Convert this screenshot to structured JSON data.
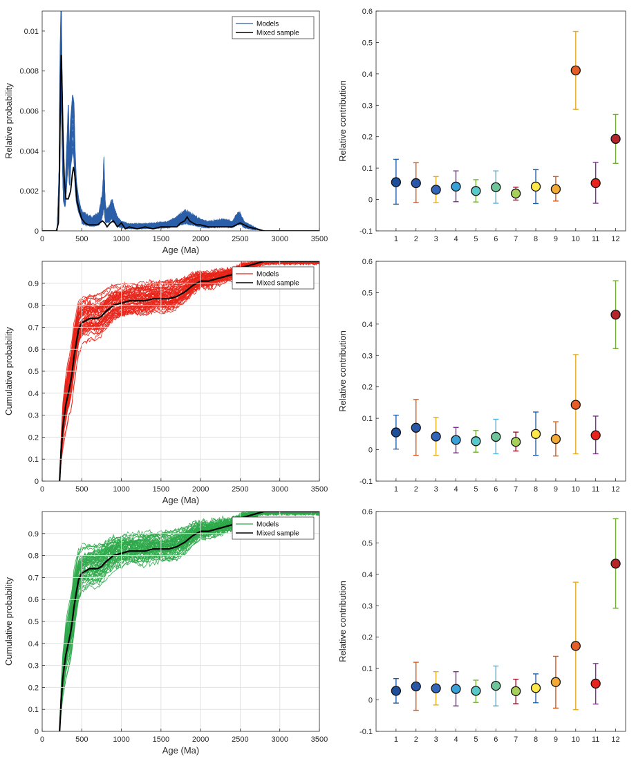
{
  "chart_data": [
    {
      "id": "pdp",
      "type": "line",
      "xlabel": "Age (Ma)",
      "ylabel": "Relative probability",
      "xlim": [
        0,
        3500
      ],
      "ylim": [
        0,
        0.011
      ],
      "xticks": [
        0,
        500,
        1000,
        1500,
        2000,
        2500,
        3000,
        3500
      ],
      "yticks": [
        0,
        0.002,
        0.004,
        0.006,
        0.008,
        0.01
      ],
      "grid": false,
      "legend": [
        "Models",
        "Mixed sample"
      ],
      "legend_position": "top-right",
      "model_color": "#2b5fa8",
      "series": [
        {
          "name": "Mixed sample",
          "color": "#000000",
          "x": [
            0,
            180,
            205,
            220,
            230,
            240,
            250,
            262,
            280,
            300,
            330,
            360,
            380,
            395,
            405,
            420,
            440,
            470,
            500,
            540,
            580,
            640,
            700,
            760,
            790,
            820,
            860,
            900,
            950,
            1000,
            1050,
            1100,
            1200,
            1300,
            1400,
            1500,
            1600,
            1700,
            1750,
            1800,
            1830,
            1860,
            1900,
            1950,
            2000,
            2100,
            2200,
            2300,
            2400,
            2450,
            2500,
            2550,
            2600,
            2700,
            2800,
            3000,
            3500
          ],
          "y": [
            0,
            0,
            0.0004,
            0.003,
            0.0072,
            0.0088,
            0.0075,
            0.005,
            0.0025,
            0.0016,
            0.0016,
            0.002,
            0.0028,
            0.0032,
            0.003,
            0.0025,
            0.0015,
            0.001,
            0.0006,
            0.0004,
            0.0003,
            0.0003,
            0.0003,
            0.0005,
            0.0004,
            0.0002,
            0.0004,
            0.0005,
            0.0002,
            0.0004,
            0.0001,
            0.0002,
            0.0001,
            0.0002,
            0.0001,
            0.0002,
            0.0002,
            0.0002,
            0.0004,
            0.0005,
            0.0007,
            0.0005,
            0.0004,
            0.0003,
            0.0003,
            0.0002,
            0.0002,
            0.0002,
            0.0002,
            0.0003,
            0.0004,
            0.0003,
            0.0002,
            0.0001,
            0,
            0,
            0
          ]
        }
      ],
      "model_envelope": {
        "x": [
          0,
          190,
          215,
          228,
          240,
          255,
          270,
          290,
          315,
          330,
          345,
          360,
          385,
          400,
          415,
          430,
          460,
          500,
          560,
          640,
          720,
          760,
          780,
          795,
          810,
          850,
          880,
          900,
          950,
          1000,
          1100,
          1300,
          1600,
          1700,
          1800,
          1850,
          1900,
          2000,
          2100,
          2300,
          2400,
          2450,
          2480,
          2510,
          2550,
          2650,
          2800,
          3500
        ],
        "y": [
          0,
          0,
          0.003,
          0.009,
          0.0115,
          0.006,
          0.0025,
          0.002,
          0.0045,
          0.0063,
          0.0035,
          0.0055,
          0.0068,
          0.0064,
          0.004,
          0.0025,
          0.0016,
          0.0009,
          0.0007,
          0.0006,
          0.0008,
          0.0016,
          0.0031,
          0.0012,
          0.0009,
          0.0011,
          0.0014,
          0.0011,
          0.0006,
          0.0004,
          0.0003,
          0.0003,
          0.0004,
          0.0006,
          0.0009,
          0.0008,
          0.0007,
          0.0005,
          0.0004,
          0.0005,
          0.0004,
          0.0007,
          0.0008,
          0.0007,
          0.0004,
          0.0002,
          0,
          0
        ]
      }
    },
    {
      "id": "contrib1",
      "type": "scatter",
      "ylabel": "Relative contribution",
      "xlim": [
        0,
        12.5
      ],
      "ylim": [
        -0.1,
        0.6
      ],
      "xticks": [
        1,
        2,
        3,
        4,
        5,
        6,
        7,
        8,
        9,
        10,
        11,
        12
      ],
      "yticks": [
        -0.1,
        0,
        0.1,
        0.2,
        0.3,
        0.4,
        0.5,
        0.6
      ],
      "grid": false,
      "x": [
        1,
        2,
        3,
        4,
        5,
        6,
        7,
        8,
        9,
        10,
        11,
        12
      ],
      "values": [
        0.055,
        0.052,
        0.031,
        0.041,
        0.027,
        0.039,
        0.019,
        0.041,
        0.033,
        0.411,
        0.052,
        0.193
      ],
      "err_low": [
        -0.015,
        -0.01,
        -0.01,
        -0.007,
        -0.008,
        -0.012,
        -0.002,
        -0.013,
        -0.005,
        0.287,
        -0.012,
        0.115
      ],
      "err_high": [
        0.128,
        0.117,
        0.073,
        0.091,
        0.063,
        0.091,
        0.039,
        0.095,
        0.073,
        0.535,
        0.118,
        0.271
      ],
      "marker_colors": [
        "#1f4e9a",
        "#2a57a6",
        "#3366b8",
        "#3aa0d8",
        "#58c9c9",
        "#6fc49a",
        "#a6d05a",
        "#ffe84a",
        "#f3a935",
        "#e45e25",
        "#e8241e",
        "#b5252a"
      ],
      "errorbar_colors": [
        "#1f5fa8",
        "#d9581f",
        "#e6ac21",
        "#7d318f",
        "#72ac36",
        "#4cb1e1",
        "#a2142f",
        "#1f5fa8",
        "#d9581f",
        "#e6ac21",
        "#7d318f",
        "#72ac36"
      ]
    },
    {
      "id": "cdf_red",
      "type": "line",
      "xlabel": "Age (Ma)",
      "ylabel": "Cumulative probability",
      "xlim": [
        0,
        3500
      ],
      "ylim": [
        0,
        1
      ],
      "xticks": [
        0,
        500,
        1000,
        1500,
        2000,
        2500,
        3000,
        3500
      ],
      "yticks": [
        0,
        0.1,
        0.2,
        0.3,
        0.4,
        0.5,
        0.6,
        0.7,
        0.8,
        0.9
      ],
      "grid": true,
      "legend": [
        "Models",
        "Mixed sample"
      ],
      "legend_position": "top-right",
      "model_color": "#e8251a",
      "series": [
        {
          "name": "Mixed sample",
          "color": "#000000",
          "x": [
            220,
            240,
            260,
            280,
            300,
            330,
            360,
            380,
            400,
            430,
            460,
            500,
            600,
            700,
            750,
            800,
            900,
            1000,
            1100,
            1200,
            1300,
            1400,
            1500,
            1600,
            1700,
            1800,
            1900,
            2000,
            2100,
            2200,
            2300,
            2400,
            2500,
            2600,
            2700,
            2800,
            3500
          ],
          "y": [
            0,
            0.14,
            0.24,
            0.3,
            0.35,
            0.4,
            0.45,
            0.5,
            0.56,
            0.63,
            0.69,
            0.72,
            0.74,
            0.74,
            0.75,
            0.77,
            0.8,
            0.81,
            0.82,
            0.82,
            0.82,
            0.83,
            0.83,
            0.83,
            0.84,
            0.86,
            0.89,
            0.91,
            0.91,
            0.92,
            0.93,
            0.94,
            0.97,
            0.98,
            0.99,
            1.0,
            1.0
          ]
        }
      ]
    },
    {
      "id": "contrib2",
      "type": "scatter",
      "ylabel": "Relative contribution",
      "xlim": [
        0,
        12.5
      ],
      "ylim": [
        -0.1,
        0.6
      ],
      "xticks": [
        1,
        2,
        3,
        4,
        5,
        6,
        7,
        8,
        9,
        10,
        11,
        12
      ],
      "yticks": [
        -0.1,
        0,
        0.1,
        0.2,
        0.3,
        0.4,
        0.5,
        0.6
      ],
      "grid": false,
      "x": [
        1,
        2,
        3,
        4,
        5,
        6,
        7,
        8,
        9,
        10,
        11,
        12
      ],
      "values": [
        0.055,
        0.07,
        0.042,
        0.031,
        0.027,
        0.041,
        0.025,
        0.05,
        0.034,
        0.143,
        0.046,
        0.43
      ],
      "err_low": [
        0.002,
        -0.018,
        -0.018,
        -0.01,
        -0.008,
        -0.013,
        -0.004,
        -0.018,
        -0.02,
        -0.013,
        -0.013,
        0.322
      ],
      "err_high": [
        0.11,
        0.16,
        0.103,
        0.071,
        0.061,
        0.097,
        0.056,
        0.12,
        0.089,
        0.303,
        0.107,
        0.538
      ],
      "marker_colors": [
        "#1f4e9a",
        "#2a57a6",
        "#3366b8",
        "#3aa0d8",
        "#58c9c9",
        "#6fc49a",
        "#a6d05a",
        "#ffe84a",
        "#f3a935",
        "#e45e25",
        "#e8241e",
        "#b5252a"
      ],
      "errorbar_colors": [
        "#1f5fa8",
        "#d9581f",
        "#e6ac21",
        "#7d318f",
        "#72ac36",
        "#4cb1e1",
        "#a2142f",
        "#1f5fa8",
        "#d9581f",
        "#e6ac21",
        "#7d318f",
        "#72ac36"
      ]
    },
    {
      "id": "cdf_green",
      "type": "line",
      "xlabel": "Age (Ma)",
      "ylabel": "Cumulative probability",
      "xlim": [
        0,
        3500
      ],
      "ylim": [
        0,
        1
      ],
      "xticks": [
        0,
        500,
        1000,
        1500,
        2000,
        2500,
        3000,
        3500
      ],
      "yticks": [
        0,
        0.1,
        0.2,
        0.3,
        0.4,
        0.5,
        0.6,
        0.7,
        0.8,
        0.9
      ],
      "grid": true,
      "legend": [
        "Models",
        "Mixed sample"
      ],
      "legend_position": "top-right",
      "model_color": "#2ea84a",
      "series": [
        {
          "name": "Mixed sample",
          "color": "#000000",
          "x": [
            220,
            240,
            260,
            280,
            300,
            330,
            360,
            380,
            400,
            430,
            460,
            500,
            600,
            700,
            750,
            800,
            900,
            1000,
            1100,
            1200,
            1300,
            1400,
            1500,
            1600,
            1700,
            1800,
            1900,
            2000,
            2100,
            2200,
            2300,
            2400,
            2500,
            2600,
            2700,
            2800,
            3500
          ],
          "y": [
            0,
            0.14,
            0.24,
            0.3,
            0.35,
            0.4,
            0.45,
            0.5,
            0.56,
            0.63,
            0.69,
            0.72,
            0.74,
            0.74,
            0.75,
            0.77,
            0.8,
            0.81,
            0.82,
            0.82,
            0.82,
            0.83,
            0.83,
            0.83,
            0.84,
            0.86,
            0.89,
            0.91,
            0.91,
            0.92,
            0.93,
            0.94,
            0.97,
            0.98,
            0.99,
            1.0,
            1.0
          ]
        }
      ]
    },
    {
      "id": "contrib3",
      "type": "scatter",
      "ylabel": "Relative contribution",
      "xlim": [
        0,
        12.5
      ],
      "ylim": [
        -0.1,
        0.6
      ],
      "xticks": [
        1,
        2,
        3,
        4,
        5,
        6,
        7,
        8,
        9,
        10,
        11,
        12
      ],
      "yticks": [
        -0.1,
        0,
        0.1,
        0.2,
        0.3,
        0.4,
        0.5,
        0.6
      ],
      "grid": false,
      "x": [
        1,
        2,
        3,
        4,
        5,
        6,
        7,
        8,
        9,
        10,
        11,
        12
      ],
      "values": [
        0.029,
        0.043,
        0.037,
        0.035,
        0.029,
        0.045,
        0.028,
        0.038,
        0.057,
        0.172,
        0.052,
        0.434
      ],
      "err_low": [
        -0.01,
        -0.033,
        -0.016,
        -0.019,
        -0.008,
        -0.019,
        -0.012,
        -0.009,
        -0.026,
        -0.031,
        -0.013,
        0.292
      ],
      "err_high": [
        0.068,
        0.12,
        0.09,
        0.09,
        0.063,
        0.108,
        0.066,
        0.083,
        0.139,
        0.375,
        0.116,
        0.577
      ],
      "marker_colors": [
        "#1f4e9a",
        "#2a57a6",
        "#3366b8",
        "#3aa0d8",
        "#58c9c9",
        "#6fc49a",
        "#a6d05a",
        "#ffe84a",
        "#f3a935",
        "#e45e25",
        "#e8241e",
        "#b5252a"
      ],
      "errorbar_colors": [
        "#1f5fa8",
        "#d9581f",
        "#e6ac21",
        "#7d318f",
        "#72ac36",
        "#4cb1e1",
        "#a2142f",
        "#1f5fa8",
        "#d9581f",
        "#e6ac21",
        "#7d318f",
        "#72ac36"
      ]
    }
  ]
}
